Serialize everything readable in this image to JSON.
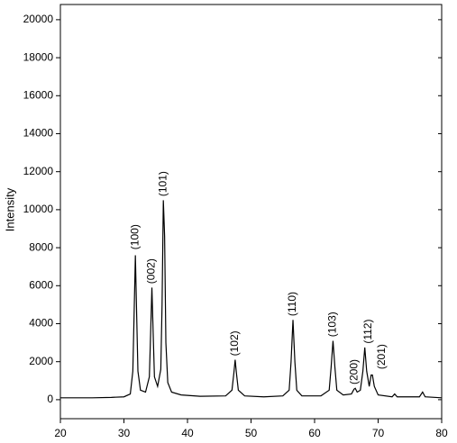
{
  "chart_data": {
    "type": "line",
    "ylabel": "Intensity",
    "xlim": [
      20,
      80
    ],
    "xticks": [
      20,
      30,
      40,
      50,
      60,
      70,
      80
    ],
    "ylim": [
      -1000,
      20800
    ],
    "yticks": [
      0,
      2000,
      4000,
      6000,
      8000,
      10000,
      12000,
      14000,
      16000,
      18000,
      20000
    ],
    "color": "#000000",
    "x": [
      20,
      25,
      28,
      30,
      31,
      31.4,
      31.6,
      31.8,
      32.0,
      32.2,
      32.6,
      33.4,
      34.0,
      34.2,
      34.4,
      34.6,
      34.8,
      35.3,
      35.8,
      36.0,
      36.2,
      36.4,
      36.6,
      36.9,
      37.5,
      39,
      42,
      46,
      47.0,
      47.3,
      47.5,
      47.7,
      48.0,
      49,
      52,
      55,
      56.0,
      56.3,
      56.6,
      56.9,
      57.2,
      58,
      61,
      62.3,
      62.6,
      62.9,
      63.2,
      63.5,
      64.5,
      65.8,
      66.2,
      66.4,
      66.7,
      67.2,
      67.6,
      67.9,
      68.2,
      68.6,
      68.9,
      69.1,
      69.4,
      70,
      72.2,
      72.6,
      73,
      76.5,
      77,
      77.4,
      80
    ],
    "values": [
      100,
      100,
      120,
      150,
      300,
      1500,
      4500,
      7600,
      4500,
      1500,
      500,
      400,
      1200,
      3500,
      5900,
      3500,
      1200,
      700,
      1600,
      5000,
      10500,
      8600,
      3000,
      900,
      400,
      250,
      180,
      200,
      500,
      1400,
      2100,
      1400,
      500,
      200,
      150,
      200,
      500,
      2000,
      4200,
      2000,
      500,
      200,
      200,
      500,
      1700,
      3100,
      1700,
      500,
      250,
      300,
      550,
      600,
      400,
      500,
      1500,
      2750,
      1500,
      700,
      1300,
      1300,
      700,
      250,
      150,
      300,
      150,
      150,
      400,
      150,
      100
    ],
    "annotations": [
      {
        "text": "(100)",
        "x": 31.8,
        "y": 7900
      },
      {
        "text": "(002)",
        "x": 34.4,
        "y": 6100
      },
      {
        "text": "(101)",
        "x": 36.2,
        "y": 10700
      },
      {
        "text": "(102)",
        "x": 47.5,
        "y": 2300
      },
      {
        "text": "(110)",
        "x": 56.6,
        "y": 4400
      },
      {
        "text": "(103)",
        "x": 62.9,
        "y": 3300
      },
      {
        "text": "(200)",
        "x": 66.3,
        "y": 800
      },
      {
        "text": "(112)",
        "x": 68.5,
        "y": 2950
      },
      {
        "text": "(201)",
        "x": 70.6,
        "y": 1600
      }
    ]
  }
}
